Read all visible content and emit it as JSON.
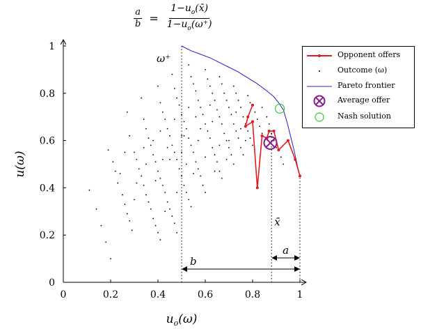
{
  "formula": {
    "lhs_num": "a",
    "lhs_den": "b",
    "rhs_num": "1−u",
    "rhs_num_sub": "o",
    "rhs_num_arg": "(x̄)",
    "rhs_den": "1−u",
    "rhs_den_sub": "o",
    "rhs_den_arg": "(ω⁺)"
  },
  "chart_data": {
    "type": "scatter",
    "xlabel": "u_o(ω)",
    "ylabel": "u(ω)",
    "xlim": [
      0,
      1
    ],
    "ylim": [
      0,
      1
    ],
    "xticks": [
      "0",
      "0.2",
      "0.4",
      "0.6",
      "0.8",
      "1"
    ],
    "yticks": [
      "0",
      "0.2",
      "0.4",
      "0.6",
      "0.8",
      "1"
    ],
    "grid": false,
    "legend_position": "top-right",
    "legend": [
      {
        "label": "Opponent offers",
        "color": "#e41a1c",
        "marker": "line-dot"
      },
      {
        "label": "Outcome (ω)",
        "color": "#000000",
        "marker": "dot"
      },
      {
        "label": "Pareto frontier",
        "color": "#1f1fe0",
        "marker": "line"
      },
      {
        "label": "Average offer",
        "color": "#8b1c8b",
        "marker": "circle-cross"
      },
      {
        "label": "Nash solution",
        "color": "#2ecc2e",
        "marker": "circle"
      }
    ],
    "series": [
      {
        "name": "Pareto frontier",
        "color": "#1f1fe0",
        "points": [
          [
            0.5,
            1.0
          ],
          [
            0.54,
            0.98
          ],
          [
            0.58,
            0.965
          ],
          [
            0.62,
            0.95
          ],
          [
            0.66,
            0.93
          ],
          [
            0.7,
            0.91
          ],
          [
            0.74,
            0.89
          ],
          [
            0.78,
            0.865
          ],
          [
            0.82,
            0.84
          ],
          [
            0.86,
            0.81
          ],
          [
            0.89,
            0.785
          ],
          [
            0.91,
            0.76
          ],
          [
            0.93,
            0.73
          ],
          [
            0.945,
            0.68
          ],
          [
            0.96,
            0.62
          ],
          [
            0.975,
            0.56
          ],
          [
            0.99,
            0.49
          ],
          [
            1.0,
            0.45
          ]
        ]
      },
      {
        "name": "Opponent offers",
        "color": "#e41a1c",
        "points": [
          [
            0.8,
            0.75
          ],
          [
            0.78,
            0.7
          ],
          [
            0.77,
            0.66
          ],
          [
            0.8,
            0.68
          ],
          [
            0.82,
            0.4
          ],
          [
            0.84,
            0.62
          ],
          [
            0.86,
            0.61
          ],
          [
            0.87,
            0.64
          ],
          [
            0.89,
            0.64
          ],
          [
            0.91,
            0.56
          ],
          [
            0.95,
            0.6
          ],
          [
            0.98,
            0.52
          ],
          [
            1.0,
            0.45
          ]
        ]
      },
      {
        "name": "Outcome (ω)",
        "color": "#000000",
        "points": [
          [
            0.11,
            0.39
          ],
          [
            0.14,
            0.31
          ],
          [
            0.16,
            0.24
          ],
          [
            0.18,
            0.17
          ],
          [
            0.2,
            0.1
          ],
          [
            0.19,
            0.56
          ],
          [
            0.21,
            0.51
          ],
          [
            0.22,
            0.47
          ],
          [
            0.23,
            0.42
          ],
          [
            0.25,
            0.37
          ],
          [
            0.26,
            0.33
          ],
          [
            0.27,
            0.29
          ],
          [
            0.28,
            0.26
          ],
          [
            0.29,
            0.22
          ],
          [
            0.27,
            0.72
          ],
          [
            0.28,
            0.62
          ],
          [
            0.3,
            0.55
          ],
          [
            0.31,
            0.52
          ],
          [
            0.32,
            0.48
          ],
          [
            0.33,
            0.45
          ],
          [
            0.34,
            0.41
          ],
          [
            0.35,
            0.37
          ],
          [
            0.36,
            0.34
          ],
          [
            0.37,
            0.31
          ],
          [
            0.38,
            0.27
          ],
          [
            0.39,
            0.24
          ],
          [
            0.4,
            0.21
          ],
          [
            0.41,
            0.18
          ],
          [
            0.33,
            0.78
          ],
          [
            0.34,
            0.69
          ],
          [
            0.35,
            0.65
          ],
          [
            0.36,
            0.61
          ],
          [
            0.37,
            0.58
          ],
          [
            0.38,
            0.54
          ],
          [
            0.39,
            0.51
          ],
          [
            0.4,
            0.47
          ],
          [
            0.41,
            0.44
          ],
          [
            0.42,
            0.41
          ],
          [
            0.43,
            0.38
          ],
          [
            0.44,
            0.34
          ],
          [
            0.45,
            0.31
          ],
          [
            0.46,
            0.28
          ],
          [
            0.47,
            0.25
          ],
          [
            0.48,
            0.21
          ],
          [
            0.4,
            0.83
          ],
          [
            0.41,
            0.76
          ],
          [
            0.42,
            0.72
          ],
          [
            0.43,
            0.69
          ],
          [
            0.44,
            0.65
          ],
          [
            0.45,
            0.62
          ],
          [
            0.46,
            0.58
          ],
          [
            0.47,
            0.55
          ],
          [
            0.48,
            0.52
          ],
          [
            0.49,
            0.48
          ],
          [
            0.5,
            0.45
          ],
          [
            0.51,
            0.41
          ],
          [
            0.52,
            0.38
          ],
          [
            0.53,
            0.35
          ],
          [
            0.54,
            0.32
          ],
          [
            0.46,
            0.88
          ],
          [
            0.47,
            0.82
          ],
          [
            0.48,
            0.78
          ],
          [
            0.49,
            0.75
          ],
          [
            0.5,
            0.71
          ],
          [
            0.51,
            0.68
          ],
          [
            0.52,
            0.65
          ],
          [
            0.53,
            0.61
          ],
          [
            0.54,
            0.58
          ],
          [
            0.55,
            0.55
          ],
          [
            0.56,
            0.51
          ],
          [
            0.57,
            0.48
          ],
          [
            0.58,
            0.45
          ],
          [
            0.59,
            0.41
          ],
          [
            0.6,
            0.38
          ],
          [
            0.53,
            0.92
          ],
          [
            0.54,
            0.87
          ],
          [
            0.55,
            0.84
          ],
          [
            0.56,
            0.81
          ],
          [
            0.57,
            0.77
          ],
          [
            0.58,
            0.74
          ],
          [
            0.59,
            0.71
          ],
          [
            0.6,
            0.67
          ],
          [
            0.61,
            0.64
          ],
          [
            0.62,
            0.61
          ],
          [
            0.63,
            0.57
          ],
          [
            0.64,
            0.54
          ],
          [
            0.65,
            0.51
          ],
          [
            0.66,
            0.47
          ],
          [
            0.67,
            0.44
          ],
          [
            0.6,
            0.9
          ],
          [
            0.61,
            0.86
          ],
          [
            0.62,
            0.83
          ],
          [
            0.63,
            0.8
          ],
          [
            0.64,
            0.77
          ],
          [
            0.65,
            0.73
          ],
          [
            0.66,
            0.7
          ],
          [
            0.67,
            0.67
          ],
          [
            0.68,
            0.63
          ],
          [
            0.69,
            0.6
          ],
          [
            0.7,
            0.57
          ],
          [
            0.71,
            0.54
          ],
          [
            0.72,
            0.5
          ],
          [
            0.66,
            0.87
          ],
          [
            0.67,
            0.84
          ],
          [
            0.68,
            0.8
          ],
          [
            0.69,
            0.77
          ],
          [
            0.7,
            0.74
          ],
          [
            0.71,
            0.71
          ],
          [
            0.72,
            0.67
          ],
          [
            0.73,
            0.64
          ],
          [
            0.74,
            0.61
          ],
          [
            0.75,
            0.57
          ],
          [
            0.76,
            0.54
          ],
          [
            0.72,
            0.83
          ],
          [
            0.73,
            0.8
          ],
          [
            0.74,
            0.77
          ],
          [
            0.75,
            0.74
          ],
          [
            0.76,
            0.7
          ],
          [
            0.77,
            0.67
          ],
          [
            0.78,
            0.64
          ],
          [
            0.79,
            0.61
          ],
          [
            0.8,
            0.58
          ],
          [
            0.78,
            0.79
          ],
          [
            0.79,
            0.76
          ],
          [
            0.81,
            0.72
          ],
          [
            0.82,
            0.69
          ],
          [
            0.83,
            0.66
          ],
          [
            0.84,
            0.63
          ],
          [
            0.85,
            0.6
          ],
          [
            0.84,
            0.74
          ],
          [
            0.86,
            0.7
          ],
          [
            0.87,
            0.67
          ],
          [
            0.88,
            0.63
          ],
          [
            0.89,
            0.6
          ],
          [
            0.9,
            0.57
          ],
          [
            0.92,
            0.53
          ],
          [
            0.93,
            0.5
          ],
          [
            0.51,
            0.62
          ],
          [
            0.5,
            0.55
          ],
          [
            0.52,
            0.5
          ],
          [
            0.44,
            0.57
          ],
          [
            0.42,
            0.52
          ],
          [
            0.38,
            0.6
          ],
          [
            0.31,
            0.42
          ],
          [
            0.57,
            0.6
          ],
          [
            0.63,
            0.68
          ],
          [
            0.69,
            0.52
          ],
          [
            0.35,
            0.5
          ],
          [
            0.48,
            0.38
          ],
          [
            0.55,
            0.46
          ],
          [
            0.6,
            0.53
          ],
          [
            0.3,
            0.35
          ],
          [
            0.24,
            0.46
          ],
          [
            0.43,
            0.3
          ],
          [
            0.26,
            0.55
          ],
          [
            0.45,
            0.52
          ],
          [
            0.5,
            0.62
          ],
          [
            0.58,
            0.65
          ],
          [
            0.64,
            0.47
          ],
          [
            0.7,
            0.6
          ],
          [
            0.75,
            0.65
          ],
          [
            0.39,
            0.43
          ],
          [
            0.34,
            0.57
          ],
          [
            0.53,
            0.74
          ],
          [
            0.47,
            0.69
          ],
          [
            0.41,
            0.64
          ],
          [
            0.56,
            0.7
          ],
          [
            0.62,
            0.75
          ],
          [
            0.66,
            0.58
          ],
          [
            0.73,
            0.72
          ],
          [
            0.77,
            0.6
          ]
        ]
      }
    ],
    "markers": {
      "average_offer": [
        0.875,
        0.59
      ],
      "nash_solution": [
        0.915,
        0.735
      ]
    },
    "annotations": {
      "omega_plus": {
        "text": "ω⁺",
        "x": 0.5
      },
      "x_bar": {
        "text": "x̄",
        "x": 0.88
      },
      "a": {
        "text": "a",
        "from": 0.88,
        "to": 1.0
      },
      "b": {
        "text": "b",
        "from": 0.5,
        "to": 1.0
      }
    }
  }
}
